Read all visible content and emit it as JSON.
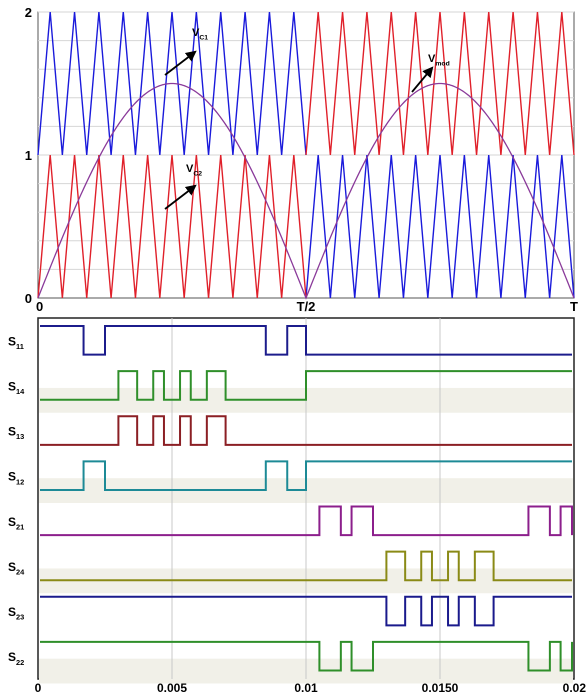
{
  "chart_data": [
    {
      "type": "line",
      "panel": "carrier-modulation",
      "x_ticks": [
        "0",
        "T/2",
        "T"
      ],
      "y_ticks": [
        "0",
        "1",
        "2"
      ],
      "ylim": [
        0,
        2
      ],
      "carrier_periods_per_half_cycle": 11,
      "modulation_peak": 1.5,
      "series": [
        {
          "name": "V",
          "subscript": "C1",
          "color": "#1a1adb",
          "band": [
            1,
            2
          ]
        },
        {
          "name": "V",
          "subscript": "C2",
          "color": "#e0202a",
          "band": [
            0,
            1
          ]
        },
        {
          "name": "V",
          "subscript": "mod",
          "color": "#8a3a9a",
          "shape": "rectified-sine",
          "peak": 1.5
        }
      ],
      "band_swap_at": "T/2"
    },
    {
      "type": "line",
      "panel": "switching-signals",
      "xlim": [
        0,
        0.02
      ],
      "x_ticks": [
        "0",
        "0.005",
        "0.01",
        "0.0150",
        "0.02"
      ],
      "x_tick_values": [
        0,
        0.005,
        0.01,
        0.015,
        0.02
      ],
      "series": [
        {
          "name": "S",
          "subscript": "11",
          "color": "#1c1c8c",
          "initial": 1,
          "toggles": [
            0.0017,
            0.0025,
            0.0085,
            0.0093,
            0.01
          ]
        },
        {
          "name": "S",
          "subscript": "14",
          "color": "#2f8f2a",
          "initial": 0,
          "toggles": [
            0.003,
            0.0037,
            0.0043,
            0.0047,
            0.0053,
            0.0057,
            0.0063,
            0.007,
            0.01
          ]
        },
        {
          "name": "S",
          "subscript": "13",
          "color": "#8b1f24",
          "initial": 0,
          "toggles": [
            0.003,
            0.0037,
            0.0043,
            0.0047,
            0.0053,
            0.0057,
            0.0063,
            0.007
          ]
        },
        {
          "name": "S",
          "subscript": "12",
          "color": "#1d8a96",
          "initial": 0,
          "toggles": [
            0.0017,
            0.0025,
            0.0085,
            0.0093,
            0.01
          ]
        },
        {
          "name": "S",
          "subscript": "21",
          "color": "#8c1f8c",
          "initial": 0,
          "toggles": [
            0.0105,
            0.0113,
            0.0117,
            0.0125,
            0.0183,
            0.0191,
            0.0195,
            0.0203
          ]
        },
        {
          "name": "S",
          "subscript": "24",
          "color": "#8a8a16",
          "initial": 0,
          "toggles": [
            0.013,
            0.0137,
            0.0143,
            0.0147,
            0.0153,
            0.0157,
            0.0163,
            0.017
          ]
        },
        {
          "name": "S",
          "subscript": "23",
          "color": "#1a1a8c",
          "initial": 1,
          "toggles": [
            0.013,
            0.0137,
            0.0143,
            0.0147,
            0.0153,
            0.0157,
            0.0163,
            0.017
          ]
        },
        {
          "name": "S",
          "subscript": "22",
          "color": "#2f8f2a",
          "initial": 1,
          "toggles": [
            0.0105,
            0.0113,
            0.0117,
            0.0125,
            0.0183,
            0.0191,
            0.0195,
            0.0203
          ]
        }
      ]
    }
  ]
}
